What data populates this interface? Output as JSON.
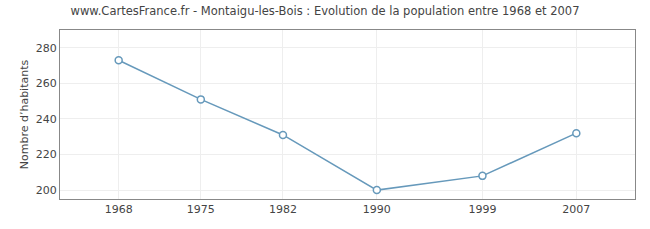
{
  "chart_data": {
    "type": "line",
    "title": "www.CartesFrance.fr - Montaigu-les-Bois : Evolution de la population entre 1968 et 2007",
    "y_label": "Nombre d’habitants",
    "x": [
      1968,
      1975,
      1982,
      1990,
      1999,
      2007
    ],
    "values": [
      273,
      251,
      231,
      200,
      208,
      232
    ],
    "color": "#6699bb",
    "marker": "circle",
    "xlim": [
      1963,
      2012
    ],
    "xticks": [
      1968,
      1975,
      1982,
      1990,
      1999,
      2007
    ],
    "ylim": [
      195,
      290
    ],
    "yticks": [
      200,
      220,
      240,
      260,
      280
    ],
    "grid": true
  }
}
